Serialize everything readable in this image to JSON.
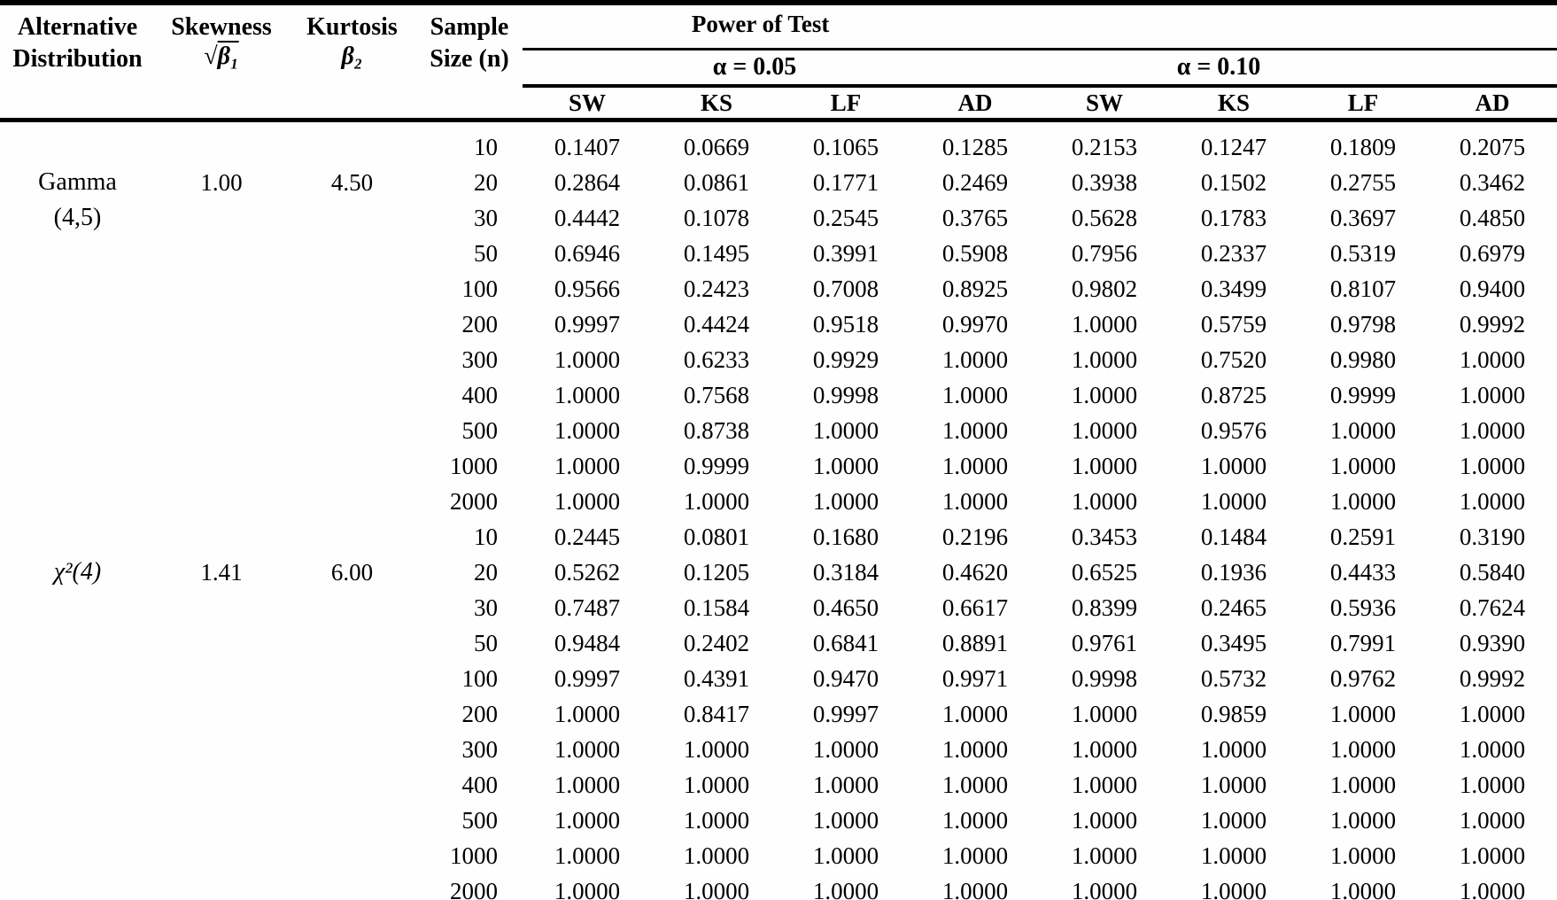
{
  "table": {
    "headers": {
      "col1_line1": "Alternative",
      "col1_line2": "Distribution",
      "col2_line1": "Skewness",
      "col2_sqrt": "√",
      "col2_arg": "β₁",
      "col3_line1": "Kurtosis",
      "col3_line2": "β₂",
      "col4_line1": "Sample",
      "col4_line2": "Size (n)",
      "power_title": "Power of Test",
      "alpha_005": "α = 0.05",
      "alpha_010": "α = 0.10",
      "test_cols": [
        "SW",
        "KS",
        "LF",
        "AD",
        "SW",
        "KS",
        "LF",
        "AD"
      ]
    },
    "groups": [
      {
        "distribution": [
          "Gamma",
          "(4,5)"
        ],
        "skewness": "1.00",
        "kurtosis": "4.50",
        "rows": [
          {
            "n": "10",
            "values": [
              "0.1407",
              "0.0669",
              "0.1065",
              "0.1285",
              "0.2153",
              "0.1247",
              "0.1809",
              "0.2075"
            ]
          },
          {
            "n": "20",
            "values": [
              "0.2864",
              "0.0861",
              "0.1771",
              "0.2469",
              "0.3938",
              "0.1502",
              "0.2755",
              "0.3462"
            ]
          },
          {
            "n": "30",
            "values": [
              "0.4442",
              "0.1078",
              "0.2545",
              "0.3765",
              "0.5628",
              "0.1783",
              "0.3697",
              "0.4850"
            ]
          },
          {
            "n": "50",
            "values": [
              "0.6946",
              "0.1495",
              "0.3991",
              "0.5908",
              "0.7956",
              "0.2337",
              "0.5319",
              "0.6979"
            ]
          },
          {
            "n": "100",
            "values": [
              "0.9566",
              "0.2423",
              "0.7008",
              "0.8925",
              "0.9802",
              "0.3499",
              "0.8107",
              "0.9400"
            ]
          },
          {
            "n": "200",
            "values": [
              "0.9997",
              "0.4424",
              "0.9518",
              "0.9970",
              "1.0000",
              "0.5759",
              "0.9798",
              "0.9992"
            ]
          },
          {
            "n": "300",
            "values": [
              "1.0000",
              "0.6233",
              "0.9929",
              "1.0000",
              "1.0000",
              "0.7520",
              "0.9980",
              "1.0000"
            ]
          },
          {
            "n": "400",
            "values": [
              "1.0000",
              "0.7568",
              "0.9998",
              "1.0000",
              "1.0000",
              "0.8725",
              "0.9999",
              "1.0000"
            ]
          },
          {
            "n": "500",
            "values": [
              "1.0000",
              "0.8738",
              "1.0000",
              "1.0000",
              "1.0000",
              "0.9576",
              "1.0000",
              "1.0000"
            ]
          },
          {
            "n": "1000",
            "values": [
              "1.0000",
              "0.9999",
              "1.0000",
              "1.0000",
              "1.0000",
              "1.0000",
              "1.0000",
              "1.0000"
            ]
          },
          {
            "n": "2000",
            "values": [
              "1.0000",
              "1.0000",
              "1.0000",
              "1.0000",
              "1.0000",
              "1.0000",
              "1.0000",
              "1.0000"
            ]
          }
        ]
      },
      {
        "distribution": [
          "χ²(4)"
        ],
        "skewness": "1.41",
        "kurtosis": "6.00",
        "rows": [
          {
            "n": "10",
            "values": [
              "0.2445",
              "0.0801",
              "0.1680",
              "0.2196",
              "0.3453",
              "0.1484",
              "0.2591",
              "0.3190"
            ]
          },
          {
            "n": "20",
            "values": [
              "0.5262",
              "0.1205",
              "0.3184",
              "0.4620",
              "0.6525",
              "0.1936",
              "0.4433",
              "0.5840"
            ]
          },
          {
            "n": "30",
            "values": [
              "0.7487",
              "0.1584",
              "0.4650",
              "0.6617",
              "0.8399",
              "0.2465",
              "0.5936",
              "0.7624"
            ]
          },
          {
            "n": "50",
            "values": [
              "0.9484",
              "0.2402",
              "0.6841",
              "0.8891",
              "0.9761",
              "0.3495",
              "0.7991",
              "0.9390"
            ]
          },
          {
            "n": "100",
            "values": [
              "0.9997",
              "0.4391",
              "0.9470",
              "0.9971",
              "0.9998",
              "0.5732",
              "0.9762",
              "0.9992"
            ]
          },
          {
            "n": "200",
            "values": [
              "1.0000",
              "0.8417",
              "0.9997",
              "1.0000",
              "1.0000",
              "0.9859",
              "1.0000",
              "1.0000"
            ]
          },
          {
            "n": "300",
            "values": [
              "1.0000",
              "1.0000",
              "1.0000",
              "1.0000",
              "1.0000",
              "1.0000",
              "1.0000",
              "1.0000"
            ]
          },
          {
            "n": "400",
            "values": [
              "1.0000",
              "1.0000",
              "1.0000",
              "1.0000",
              "1.0000",
              "1.0000",
              "1.0000",
              "1.0000"
            ]
          },
          {
            "n": "500",
            "values": [
              "1.0000",
              "1.0000",
              "1.0000",
              "1.0000",
              "1.0000",
              "1.0000",
              "1.0000",
              "1.0000"
            ]
          },
          {
            "n": "1000",
            "values": [
              "1.0000",
              "1.0000",
              "1.0000",
              "1.0000",
              "1.0000",
              "1.0000",
              "1.0000",
              "1.0000"
            ]
          },
          {
            "n": "2000",
            "values": [
              "1.0000",
              "1.0000",
              "1.0000",
              "1.0000",
              "1.0000",
              "1.0000",
              "1.0000",
              "1.0000"
            ]
          }
        ]
      }
    ]
  }
}
